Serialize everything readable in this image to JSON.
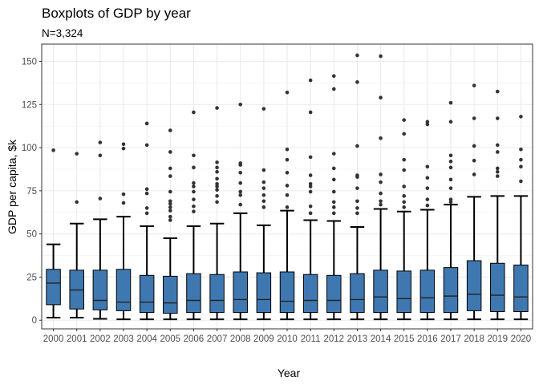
{
  "chart_data": {
    "type": "boxplot",
    "title": "Boxplots of GDP by year",
    "subtitle": "N=3,324",
    "xlabel": "Year",
    "ylabel": "GDP per capita, $k",
    "ylim": [
      -5,
      160
    ],
    "yticks": [
      0,
      25,
      50,
      75,
      100,
      125,
      150
    ],
    "grid": true,
    "colors": {
      "box_fill": "#3f78b0",
      "outline": "#000000",
      "outlier": "#333333",
      "panel_border": "#333333",
      "grid": "#ebebeb"
    },
    "categories": [
      "2000",
      "2001",
      "2002",
      "2003",
      "2004",
      "2005",
      "2006",
      "2007",
      "2008",
      "2009",
      "2010",
      "2011",
      "2012",
      "2013",
      "2014",
      "2015",
      "2016",
      "2017",
      "2018",
      "2019",
      "2020"
    ],
    "boxes": [
      {
        "min": 1.5,
        "q1": 9,
        "median": 21.5,
        "q3": 29.5,
        "max": 44,
        "outliers": [
          98.5
        ]
      },
      {
        "min": 1.5,
        "q1": 6.5,
        "median": 17.5,
        "q3": 29,
        "max": 56,
        "outliers": [
          68.5,
          96.5
        ]
      },
      {
        "min": 0.8,
        "q1": 6,
        "median": 11.5,
        "q3": 29,
        "max": 58.5,
        "outliers": [
          70.5,
          95.5,
          103
        ]
      },
      {
        "min": 0.5,
        "q1": 5.5,
        "median": 10.5,
        "q3": 29.5,
        "max": 60,
        "outliers": [
          68,
          73,
          99.5,
          102
        ]
      },
      {
        "min": 0.5,
        "q1": 4.5,
        "median": 10.5,
        "q3": 26,
        "max": 54.5,
        "outliers": [
          62,
          65,
          73.5,
          76,
          101.5,
          114
        ]
      },
      {
        "min": 0.5,
        "q1": 4,
        "median": 10,
        "q3": 25.5,
        "max": 47.5,
        "outliers": [
          58,
          60,
          63.5,
          65.5,
          67.5,
          69,
          74.5,
          83.5,
          88,
          97.5,
          110
        ]
      },
      {
        "min": 0.5,
        "q1": 4.5,
        "median": 11.5,
        "q3": 27,
        "max": 54.5,
        "outliers": [
          63,
          66,
          70,
          74.5,
          77.5,
          79.5,
          88.5,
          95.5,
          120.5
        ]
      },
      {
        "min": 0.5,
        "q1": 4.5,
        "median": 11.5,
        "q3": 26.5,
        "max": 56,
        "outliers": [
          68.5,
          72,
          75.5,
          77.5,
          79,
          82,
          86,
          88.5,
          91.5,
          123
        ]
      },
      {
        "min": 0.5,
        "q1": 4.5,
        "median": 12,
        "q3": 28,
        "max": 62,
        "outliers": [
          67,
          72.5,
          74.5,
          79.5,
          85.5,
          90,
          91,
          125
        ]
      },
      {
        "min": 0.5,
        "q1": 4.5,
        "median": 12,
        "q3": 27.5,
        "max": 55,
        "outliers": [
          65.5,
          69,
          72.5,
          76.5,
          80,
          87,
          122.5
        ]
      },
      {
        "min": 0.5,
        "q1": 4.5,
        "median": 11,
        "q3": 28,
        "max": 63.5,
        "outliers": [
          65.5,
          72.5,
          78,
          85.5,
          93,
          99,
          132
        ]
      },
      {
        "min": 0.5,
        "q1": 4.5,
        "median": 11.5,
        "q3": 26.5,
        "max": 58,
        "outliers": [
          62,
          66,
          74.5,
          77.5,
          79,
          84,
          94.5,
          120.5,
          139
        ]
      },
      {
        "min": 0.5,
        "q1": 4.5,
        "median": 11.5,
        "q3": 26,
        "max": 57.5,
        "outliers": [
          62,
          65.5,
          68.5,
          74.5,
          81.5,
          88,
          96.5,
          134,
          141.5
        ]
      },
      {
        "min": 0.5,
        "q1": 4.5,
        "median": 12,
        "q3": 27,
        "max": 54,
        "outliers": [
          62,
          65,
          69,
          76.5,
          83,
          84,
          101,
          138,
          153.5
        ]
      },
      {
        "min": 0.5,
        "q1": 4.5,
        "median": 13.5,
        "q3": 29,
        "max": 64.5,
        "outliers": [
          67,
          69,
          73.5,
          80,
          84.5,
          105.5,
          129,
          153
        ]
      },
      {
        "min": 0.5,
        "q1": 4.5,
        "median": 12.5,
        "q3": 28.5,
        "max": 63,
        "outliers": [
          65.5,
          68.5,
          72,
          77.5,
          87,
          93,
          108,
          116
        ]
      },
      {
        "min": 0.5,
        "q1": 4.5,
        "median": 13,
        "q3": 29,
        "max": 64,
        "outliers": [
          66.5,
          70,
          76.5,
          82.5,
          89,
          113.5,
          115
        ]
      },
      {
        "min": 0.5,
        "q1": 4.5,
        "median": 14,
        "q3": 30.5,
        "max": 67,
        "outliers": [
          68.5,
          70,
          76.5,
          81.5,
          88.5,
          92,
          95.5,
          115,
          126
        ]
      },
      {
        "min": 0.5,
        "q1": 5.5,
        "median": 15,
        "q3": 34.5,
        "max": 71.5,
        "outliers": [
          84.5,
          92.5,
          101,
          117,
          136
        ]
      },
      {
        "min": 0.5,
        "q1": 5,
        "median": 14.5,
        "q3": 33,
        "max": 72,
        "outliers": [
          83.5,
          86,
          88,
          97.5,
          101.5,
          117,
          132.5
        ]
      },
      {
        "min": 0.5,
        "q1": 5,
        "median": 13.5,
        "q3": 32,
        "max": 72,
        "outliers": [
          80.5,
          89,
          93,
          99,
          118
        ]
      }
    ]
  }
}
